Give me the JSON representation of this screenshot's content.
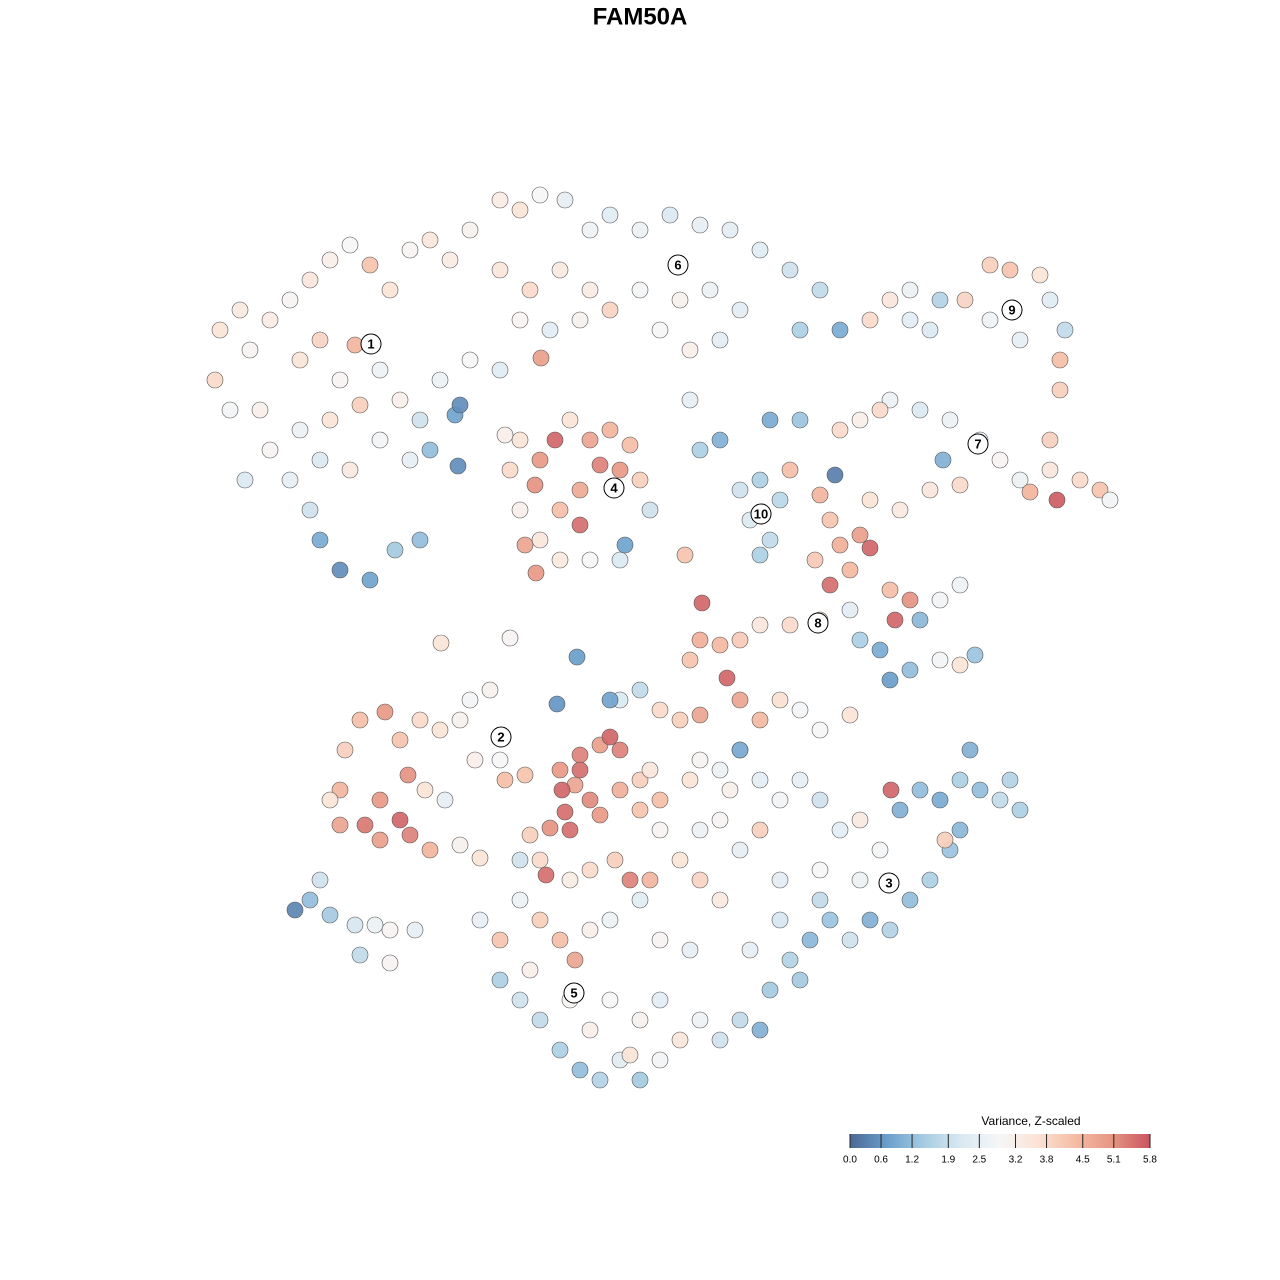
{
  "chart_data": {
    "type": "scatter",
    "title": "FAM50A",
    "xlim": [
      0,
      1280
    ],
    "ylim": [
      1280,
      0
    ],
    "x": [
      220,
      240,
      215,
      230,
      250,
      270,
      290,
      310,
      330,
      350,
      370,
      390,
      410,
      430,
      450,
      470,
      300,
      320,
      355,
      340,
      380,
      400,
      420,
      360,
      330,
      300,
      270,
      290,
      320,
      350,
      380,
      410,
      440,
      470,
      500,
      455,
      430,
      458,
      320,
      340,
      370,
      395,
      420,
      310,
      245,
      260,
      500,
      520,
      540,
      565,
      590,
      610,
      640,
      670,
      700,
      730,
      760,
      790,
      820,
      500,
      530,
      560,
      590,
      610,
      640,
      680,
      710,
      740,
      520,
      550,
      580,
      660,
      690,
      720,
      800,
      840,
      541,
      690,
      870,
      890,
      910,
      940,
      965,
      990,
      1010,
      1040,
      1050,
      1065,
      1060,
      1060,
      1020,
      990,
      930,
      910,
      840,
      860,
      890,
      920,
      950,
      980,
      1000,
      1020,
      1050,
      1080,
      1100,
      1110,
      1057,
      1030,
      960,
      930,
      900,
      870,
      880,
      1050,
      943,
      510,
      520,
      540,
      555,
      570,
      590,
      610,
      630,
      620,
      640,
      600,
      580,
      560,
      535,
      520,
      540,
      525,
      560,
      590,
      620,
      650,
      580,
      625,
      536,
      505,
      460,
      740,
      760,
      780,
      750,
      770,
      760,
      790,
      700,
      720,
      770,
      800,
      835,
      820,
      830,
      840,
      860,
      870,
      850,
      830,
      815,
      890,
      910,
      895,
      920,
      940,
      960,
      880,
      890,
      910,
      940,
      960,
      975,
      860,
      850,
      820,
      790,
      760,
      740,
      720,
      700,
      702,
      685,
      690,
      340,
      360,
      385,
      400,
      420,
      440,
      460,
      470,
      490,
      500,
      475,
      345,
      330,
      340,
      365,
      380,
      400,
      410,
      380,
      425,
      445,
      430,
      460,
      480,
      505,
      525,
      408,
      441,
      510,
      560,
      580,
      600,
      620,
      610,
      575,
      562,
      590,
      600,
      565,
      550,
      570,
      530,
      540,
      520,
      620,
      640,
      650,
      640,
      660,
      650,
      630,
      615,
      590,
      570,
      546,
      660,
      690,
      700,
      720,
      740,
      730,
      760,
      780,
      680,
      700,
      720,
      740,
      760,
      700,
      720,
      620,
      640,
      660,
      680,
      700,
      727,
      740,
      760,
      780,
      800,
      820,
      850,
      740,
      577,
      580,
      610,
      557,
      800,
      820,
      840,
      860,
      880,
      900,
      920,
      940,
      960,
      980,
      1000,
      1020,
      1010,
      950,
      930,
      910,
      890,
      870,
      850,
      830,
      810,
      790,
      800,
      780,
      860,
      820,
      960,
      945,
      891,
      970,
      780,
      820,
      480,
      500,
      520,
      540,
      560,
      575,
      590,
      610,
      640,
      660,
      690,
      500,
      520,
      540,
      560,
      580,
      600,
      620,
      640,
      660,
      680,
      700,
      720,
      740,
      760,
      610,
      640,
      660,
      590,
      570,
      530,
      630,
      750,
      770,
      295,
      310,
      330,
      355,
      375,
      390,
      360,
      390,
      415,
      320
    ],
    "y": [
      330,
      310,
      380,
      410,
      350,
      320,
      300,
      280,
      260,
      245,
      265,
      290,
      250,
      240,
      260,
      230,
      360,
      340,
      345,
      380,
      370,
      400,
      420,
      405,
      420,
      430,
      450,
      480,
      460,
      470,
      440,
      460,
      380,
      360,
      370,
      415,
      450,
      466,
      540,
      570,
      580,
      550,
      540,
      510,
      480,
      410,
      200,
      210,
      195,
      200,
      230,
      215,
      230,
      215,
      225,
      230,
      250,
      270,
      290,
      270,
      290,
      270,
      290,
      310,
      290,
      300,
      290,
      310,
      320,
      330,
      320,
      330,
      350,
      340,
      330,
      330,
      358,
      400,
      320,
      300,
      290,
      300,
      300,
      265,
      270,
      275,
      300,
      330,
      360,
      390,
      340,
      320,
      330,
      320,
      430,
      420,
      400,
      410,
      420,
      440,
      460,
      480,
      470,
      480,
      490,
      500,
      500,
      492,
      485,
      490,
      510,
      500,
      410,
      440,
      460,
      470,
      440,
      460,
      440,
      420,
      440,
      430,
      445,
      470,
      480,
      465,
      490,
      510,
      485,
      510,
      540,
      545,
      560,
      560,
      560,
      510,
      525,
      545,
      573,
      435,
      405,
      490,
      480,
      500,
      520,
      540,
      555,
      470,
      450,
      440,
      420,
      420,
      475,
      495,
      520,
      545,
      535,
      548,
      570,
      585,
      560,
      590,
      600,
      620,
      620,
      600,
      585,
      650,
      680,
      670,
      660,
      665,
      655,
      640,
      610,
      620,
      625,
      625,
      640,
      645,
      640,
      603,
      555,
      660,
      790,
      720,
      712,
      740,
      720,
      730,
      720,
      700,
      690,
      760,
      760,
      750,
      800,
      825,
      825,
      800,
      820,
      835,
      840,
      790,
      800,
      850,
      845,
      858,
      780,
      775,
      775,
      643,
      638,
      770,
      755,
      745,
      750,
      737,
      785,
      790,
      800,
      815,
      812,
      828,
      830,
      835,
      860,
      860,
      790,
      780,
      770,
      810,
      830,
      880,
      880,
      860,
      870,
      880,
      875,
      800,
      780,
      760,
      770,
      750,
      790,
      780,
      800,
      860,
      830,
      820,
      850,
      830,
      880,
      900,
      700,
      690,
      710,
      720,
      715,
      678,
      700,
      720,
      700,
      710,
      730,
      715,
      750,
      657,
      770,
      700,
      704,
      780,
      800,
      830,
      820,
      850,
      810,
      790,
      800,
      780,
      790,
      800,
      810,
      780,
      850,
      880,
      900,
      930,
      920,
      940,
      920,
      940,
      960,
      980,
      920,
      880,
      870,
      830,
      840,
      790,
      750,
      880,
      900,
      920,
      940,
      900,
      920,
      940,
      960,
      930,
      920,
      900,
      940,
      950,
      980,
      1000,
      1020,
      1050,
      1070,
      1080,
      1060,
      1080,
      1060,
      1040,
      1020,
      1040,
      1020,
      1030,
      1000,
      1020,
      1000,
      1030,
      1000,
      970,
      1055,
      950,
      990,
      910,
      900,
      915,
      925,
      925,
      930,
      955,
      963,
      930,
      880
    ],
    "values": [
      3.6,
      3.4,
      3.8,
      2.8,
      3.0,
      3.3,
      3.0,
      3.5,
      3.2,
      2.9,
      4.2,
      3.6,
      3.0,
      3.5,
      3.3,
      3.1,
      3.6,
      3.9,
      4.5,
      3.0,
      2.7,
      3.2,
      2.0,
      4.0,
      3.6,
      2.6,
      3.0,
      2.5,
      2.2,
      3.4,
      2.8,
      2.5,
      2.6,
      2.9,
      2.3,
      0.8,
      1.2,
      0.5,
      0.9,
      0.5,
      0.8,
      1.4,
      1.2,
      2.0,
      2.2,
      3.2,
      3.3,
      3.6,
      2.9,
      2.5,
      2.7,
      2.3,
      2.6,
      2.2,
      2.5,
      2.4,
      2.3,
      2.0,
      1.8,
      3.5,
      3.8,
      3.4,
      3.3,
      3.9,
      2.8,
      3.1,
      2.6,
      2.4,
      3.0,
      2.4,
      3.1,
      2.9,
      3.2,
      2.4,
      1.5,
      0.9,
      4.9,
      2.5,
      3.8,
      3.5,
      2.6,
      1.6,
      3.9,
      4.0,
      4.2,
      3.6,
      2.3,
      1.8,
      4.3,
      4.0,
      2.5,
      2.7,
      2.2,
      2.4,
      3.8,
      3.2,
      2.6,
      2.2,
      2.6,
      2.5,
      3.0,
      2.6,
      3.5,
      3.8,
      4.2,
      2.8,
      5.7,
      4.5,
      3.8,
      3.5,
      3.4,
      3.6,
      3.8,
      4.0,
      1.0,
      3.8,
      3.6,
      5.0,
      5.6,
      3.6,
      4.8,
      4.5,
      4.3,
      5.0,
      4.0,
      5.3,
      4.7,
      4.3,
      5.1,
      3.2,
      3.5,
      4.8,
      3.4,
      2.9,
      2.2,
      2.0,
      5.5,
      0.8,
      5.0,
      3.2,
      0.5,
      2.0,
      1.5,
      1.7,
      2.2,
      1.8,
      1.5,
      4.3,
      1.5,
      1.0,
      0.9,
      1.3,
      0.3,
      4.5,
      4.2,
      4.6,
      4.9,
      5.6,
      4.4,
      5.5,
      4.1,
      4.3,
      5.1,
      5.6,
      1.1,
      2.8,
      2.7,
      0.9,
      0.7,
      1.2,
      2.8,
      3.6,
      1.3,
      1.5,
      2.4,
      3.7,
      3.8,
      3.5,
      4.1,
      4.4,
      4.6,
      5.6,
      4.2,
      4.2,
      4.5,
      4.3,
      5.0,
      4.2,
      3.8,
      3.6,
      3.1,
      2.8,
      3.1,
      2.9,
      3.2,
      4.0,
      3.6,
      4.8,
      5.4,
      5.0,
      5.6,
      5.3,
      4.9,
      3.6,
      2.5,
      4.5,
      3.1,
      3.6,
      4.3,
      4.2,
      5.1,
      3.6,
      3.0,
      5.0,
      5.3,
      4.9,
      5.3,
      5.6,
      4.8,
      5.6,
      5.2,
      5.0,
      5.5,
      5.1,
      5.5,
      4.0,
      3.8,
      2.0,
      4.6,
      4.0,
      3.5,
      4.2,
      3.0,
      4.5,
      5.3,
      4.0,
      3.8,
      3.3,
      5.5,
      4.3,
      3.6,
      3.0,
      2.6,
      2.0,
      3.2,
      2.4,
      2.8,
      3.6,
      2.6,
      3.0,
      2.5,
      4.0,
      3.9,
      3.4,
      2.2,
      1.8,
      3.8,
      4.0,
      4.8,
      5.6,
      4.8,
      4.4,
      3.7,
      2.8,
      2.9,
      3.6,
      0.9,
      0.7,
      5.5,
      0.8,
      0.6,
      2.5,
      2.0,
      2.4,
      3.4,
      2.8,
      1.0,
      1.2,
      0.9,
      1.5,
      1.2,
      1.8,
      1.5,
      1.6,
      1.3,
      1.5,
      1.2,
      1.6,
      1.0,
      2.0,
      1.3,
      1.1,
      1.6,
      1.4,
      2.1,
      2.6,
      2.9,
      1.1,
      4.0,
      5.6,
      1.0,
      2.4,
      1.8,
      2.5,
      4.2,
      2.6,
      4.0,
      4.3,
      4.8,
      3.2,
      2.6,
      2.3,
      3.0,
      2.5,
      1.5,
      2.0,
      1.8,
      1.5,
      1.2,
      1.6,
      2.3,
      1.4,
      2.8,
      3.5,
      2.7,
      2.0,
      1.8,
      1.0,
      2.9,
      3.1,
      2.4,
      3.2,
      3.0,
      3.2,
      3.6,
      2.5,
      1.4,
      0.4,
      1.2,
      1.4,
      2.1,
      2.6,
      3.0,
      1.8,
      3.0,
      2.5,
      2.0
    ],
    "annotations": [
      {
        "text": "1",
        "x": 371,
        "y": 344
      },
      {
        "text": "2",
        "x": 501,
        "y": 737
      },
      {
        "text": "3",
        "x": 889,
        "y": 883
      },
      {
        "text": "4",
        "x": 614,
        "y": 488
      },
      {
        "text": "5",
        "x": 574,
        "y": 993
      },
      {
        "text": "6",
        "x": 678,
        "y": 265
      },
      {
        "text": "7",
        "x": 978,
        "y": 444
      },
      {
        "text": "8",
        "x": 818,
        "y": 623
      },
      {
        "text": "9",
        "x": 1012,
        "y": 310
      },
      {
        "text": "10",
        "x": 761,
        "y": 514
      }
    ],
    "colorbar": {
      "title": "Variance, Z-scaled",
      "clim": [
        0,
        5.8
      ],
      "colors": [
        "#4a6895",
        "#6b9fcc",
        "#a8cde3",
        "#dbe9f2",
        "#f6f6f6",
        "#fbe3d6",
        "#f5bca4",
        "#e69583",
        "#c9545f"
      ],
      "ticks": [
        {
          "value": 0,
          "label": "0.0"
        },
        0.6,
        1.2,
        1.9,
        2.5,
        3.2,
        3.8,
        4.5,
        5.1,
        5.8
      ]
    }
  }
}
